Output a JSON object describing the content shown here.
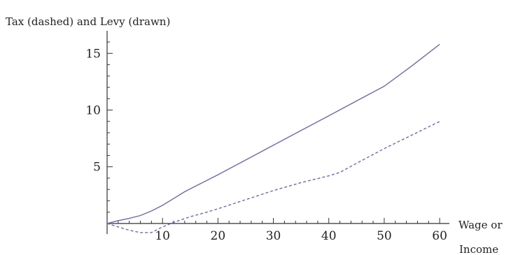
{
  "chart_data": {
    "type": "line",
    "title": "Tax (dashed) and Levy (drawn)",
    "xlabel": [
      "Wage or",
      "Income"
    ],
    "ylabel": "",
    "xlim": [
      0,
      61
    ],
    "ylim": [
      -1.3,
      16.5
    ],
    "x_ticks": [
      10,
      20,
      30,
      40,
      50,
      60
    ],
    "y_ticks": [
      5,
      10,
      15
    ],
    "grid": false,
    "series": [
      {
        "name": "Tax",
        "style": "dashed",
        "color": "#6b6bab",
        "x": [
          0,
          2,
          4,
          6,
          8,
          10,
          12,
          15,
          18,
          20,
          25,
          30,
          35,
          40,
          42,
          45,
          50,
          55,
          60
        ],
        "y": [
          0,
          -0.3,
          -0.6,
          -0.8,
          -0.8,
          -0.3,
          0.1,
          0.6,
          1.0,
          1.3,
          2.1,
          2.9,
          3.6,
          4.2,
          4.5,
          5.3,
          6.6,
          7.8,
          9.0
        ]
      },
      {
        "name": "Levy",
        "style": "solid",
        "color": "#6b6bab",
        "x": [
          0,
          2,
          4,
          6,
          8,
          10,
          12,
          14,
          16,
          18,
          20,
          25,
          30,
          35,
          40,
          45,
          50,
          55,
          60
        ],
        "y": [
          0,
          0.25,
          0.45,
          0.7,
          1.1,
          1.6,
          2.2,
          2.8,
          3.3,
          3.8,
          4.3,
          5.6,
          6.9,
          8.2,
          9.5,
          10.8,
          12.1,
          13.9,
          15.8
        ]
      }
    ]
  }
}
